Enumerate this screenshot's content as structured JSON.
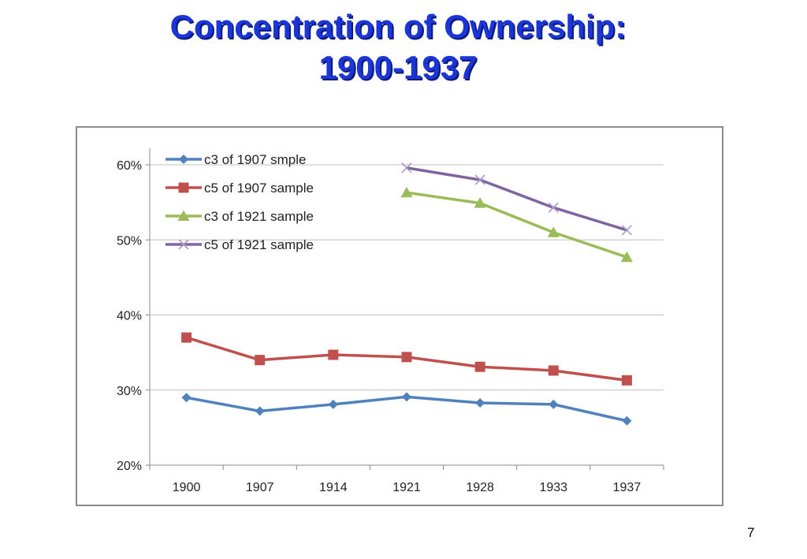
{
  "slide": {
    "title_line1": "Concentration of Ownership:",
    "title_line2": "1900-1937",
    "page_number": "7"
  },
  "colors": {
    "title": "#1b35d6",
    "series": [
      "#4f81bd",
      "#c0504d",
      "#9bbb59",
      "#8064a2"
    ],
    "grid": "#bfbfbf"
  },
  "chart_data": {
    "type": "line",
    "categories": [
      "1900",
      "1907",
      "1914",
      "1921",
      "1928",
      "1933",
      "1937"
    ],
    "y_tick_labels": [
      "20%",
      "30%",
      "40%",
      "50%",
      "60%"
    ],
    "ylim": [
      0.2,
      0.62
    ],
    "yticks": [
      0.2,
      0.3,
      0.4,
      0.5,
      0.6
    ],
    "grid": true,
    "legend_position": "top-left",
    "series": [
      {
        "name": "c3 of 1907 smple",
        "marker": "diamond",
        "values": [
          0.29,
          0.272,
          0.281,
          0.291,
          0.283,
          0.281,
          0.259
        ]
      },
      {
        "name": "c5 of 1907 sample",
        "marker": "square",
        "values": [
          0.37,
          0.34,
          0.347,
          0.344,
          0.331,
          0.326,
          0.313
        ]
      },
      {
        "name": "c3 of 1921 sample",
        "marker": "triangle",
        "values": [
          null,
          null,
          null,
          0.563,
          0.549,
          0.51,
          0.477
        ]
      },
      {
        "name": "c5 of 1921 sample",
        "marker": "x",
        "values": [
          null,
          null,
          null,
          0.596,
          0.58,
          0.543,
          0.513
        ]
      }
    ]
  }
}
